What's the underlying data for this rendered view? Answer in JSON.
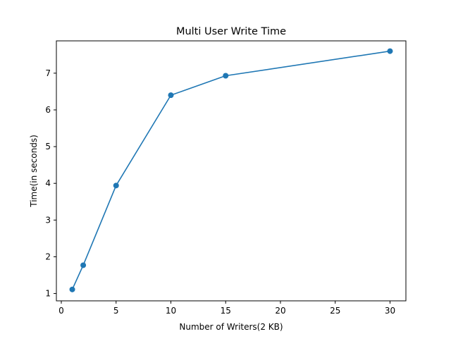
{
  "chart_data": {
    "type": "line",
    "title": "Multi User Write Time",
    "xlabel": "Number of Writers(2 KB)",
    "ylabel": "Time(in seconds)",
    "xlim": [
      -0.45,
      31.45
    ],
    "ylim": [
      0.8,
      7.88
    ],
    "xticks": [
      0,
      5,
      10,
      15,
      20,
      25,
      30
    ],
    "yticks": [
      1,
      2,
      3,
      4,
      5,
      6,
      7
    ],
    "grid": false,
    "legend": "none",
    "series": [
      {
        "x": [
          1,
          2,
          5,
          10,
          15,
          30
        ],
        "values": [
          1.11,
          1.77,
          3.94,
          6.4,
          6.93,
          7.6
        ],
        "color": "#1f77b4",
        "marker": "circle"
      }
    ]
  }
}
